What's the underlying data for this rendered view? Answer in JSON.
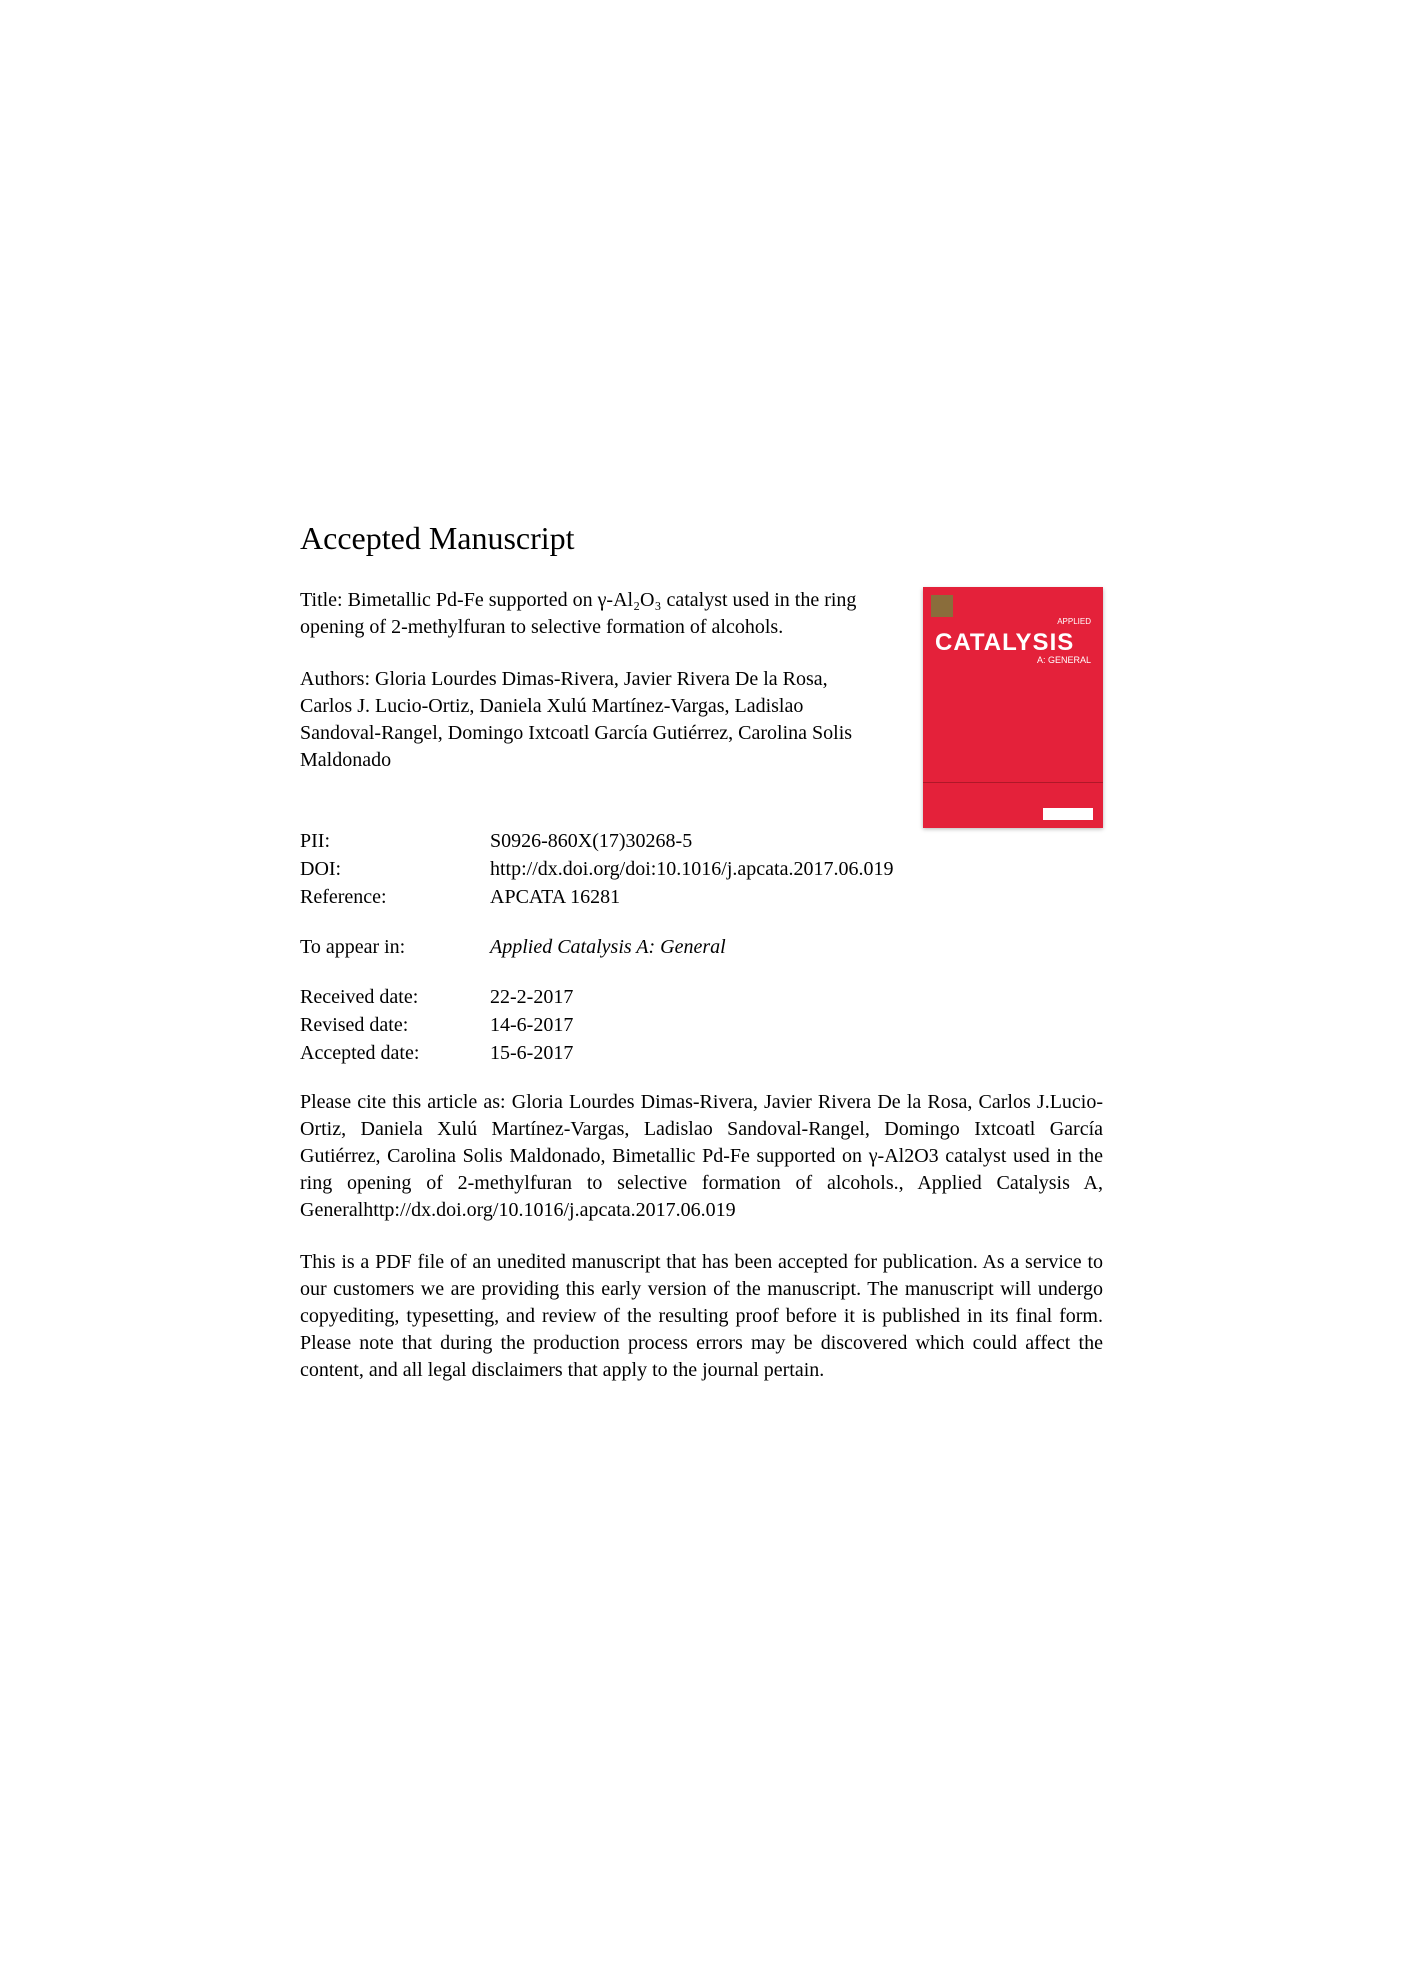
{
  "heading": "Accepted Manuscript",
  "title": "Title: Bimetallic Pd-Fe supported on γ-Al₂O₃ catalyst used in the ring opening of 2-methylfuran to selective formation of alcohols.",
  "authors": "Authors: Gloria Lourdes Dimas-Rivera, Javier Rivera De la Rosa, Carlos J. Lucio-Ortiz, Daniela Xulú Martínez-Vargas, Ladislao Sandoval-Rangel, Domingo Ixtcoatl García Gutiérrez, Carolina Solis Maldonado",
  "journal_cover": {
    "title": "CATALYSIS",
    "subtitle_small": "APPLIED",
    "subtitle": "A: GENERAL",
    "background_color": "#e4213a"
  },
  "meta": {
    "pii": {
      "label": "PII:",
      "value": "S0926-860X(17)30268-5"
    },
    "doi": {
      "label": "DOI:",
      "value": "http://dx.doi.org/doi:10.1016/j.apcata.2017.06.019"
    },
    "reference": {
      "label": "Reference:",
      "value": "APCATA 16281"
    },
    "appear_in": {
      "label": "To appear in:",
      "value": "Applied Catalysis A: General"
    },
    "received": {
      "label": "Received date:",
      "value": "22-2-2017"
    },
    "revised": {
      "label": "Revised date:",
      "value": "14-6-2017"
    },
    "accepted": {
      "label": "Accepted date:",
      "value": "15-6-2017"
    }
  },
  "citation": "Please cite this article as: Gloria Lourdes Dimas-Rivera, Javier Rivera De la Rosa, Carlos J.Lucio-Ortiz, Daniela Xulú Martínez-Vargas, Ladislao Sandoval-Rangel, Domingo Ixtcoatl García Gutiérrez, Carolina Solis Maldonado, Bimetallic Pd-Fe supported on γ-Al2O3 catalyst used in the ring opening of 2-methylfuran to selective formation of alcohols., Applied Catalysis A, Generalhttp://dx.doi.org/10.1016/j.apcata.2017.06.019",
  "disclaimer": "This is a PDF file of an unedited manuscript that has been accepted for publication. As a service to our customers we are providing this early version of the manuscript. The manuscript will undergo copyediting, typesetting, and review of the resulting proof before it is published in its final form. Please note that during the production process errors may be discovered which could affect the content, and all legal disclaimers that apply to the journal pertain."
}
